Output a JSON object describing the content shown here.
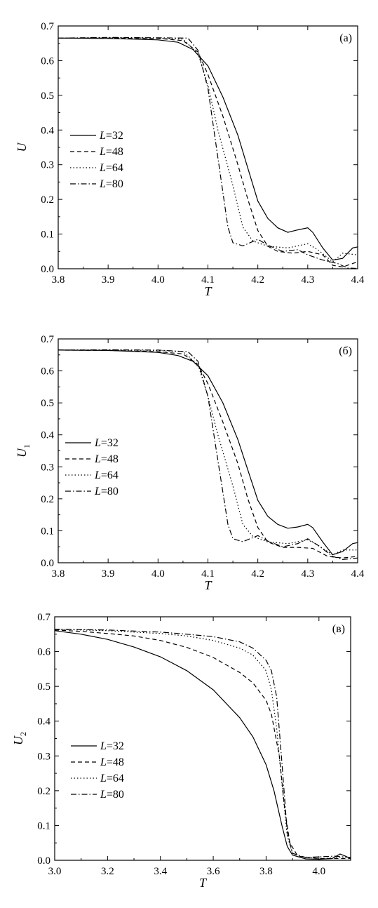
{
  "chart_data": [
    {
      "type": "line",
      "panel_label": "(а)",
      "xlabel": "T",
      "ylabel": "U",
      "ylabel_sub": "",
      "xlim": [
        3.8,
        4.4
      ],
      "ylim": [
        0.0,
        0.7
      ],
      "xticks": [
        "3.8",
        "3.9",
        "4.0",
        "4.1",
        "4.2",
        "4.3",
        "4.4"
      ],
      "yticks": [
        "0.0",
        "0.1",
        "0.2",
        "0.3",
        "0.4",
        "0.5",
        "0.6",
        "0.7"
      ],
      "legend_position": "middle-left",
      "series": [
        {
          "name": "L=32",
          "style": "solid",
          "points": [
            [
              3.8,
              0.665
            ],
            [
              3.9,
              0.664
            ],
            [
              4.0,
              0.66
            ],
            [
              4.04,
              0.653
            ],
            [
              4.07,
              0.632
            ],
            [
              4.1,
              0.585
            ],
            [
              4.13,
              0.495
            ],
            [
              4.16,
              0.385
            ],
            [
              4.18,
              0.29
            ],
            [
              4.2,
              0.195
            ],
            [
              4.22,
              0.145
            ],
            [
              4.24,
              0.118
            ],
            [
              4.26,
              0.105
            ],
            [
              4.28,
              0.112
            ],
            [
              4.3,
              0.118
            ],
            [
              4.31,
              0.105
            ],
            [
              4.33,
              0.06
            ],
            [
              4.35,
              0.025
            ],
            [
              4.37,
              0.03
            ],
            [
              4.39,
              0.06
            ],
            [
              4.4,
              0.063
            ]
          ]
        },
        {
          "name": "L=48",
          "style": "dashed",
          "points": [
            [
              3.8,
              0.665
            ],
            [
              3.9,
              0.665
            ],
            [
              4.0,
              0.664
            ],
            [
              4.05,
              0.658
            ],
            [
              4.08,
              0.625
            ],
            [
              4.1,
              0.56
            ],
            [
              4.13,
              0.44
            ],
            [
              4.16,
              0.3
            ],
            [
              4.18,
              0.2
            ],
            [
              4.2,
              0.11
            ],
            [
              4.22,
              0.065
            ],
            [
              4.24,
              0.05
            ],
            [
              4.27,
              0.045
            ],
            [
              4.3,
              0.05
            ],
            [
              4.33,
              0.04
            ],
            [
              4.35,
              0.01
            ],
            [
              4.37,
              0.005
            ],
            [
              4.4,
              0.02
            ]
          ]
        },
        {
          "name": "L=64",
          "style": "dotted",
          "points": [
            [
              3.8,
              0.665
            ],
            [
              3.9,
              0.666
            ],
            [
              4.0,
              0.665
            ],
            [
              4.05,
              0.662
            ],
            [
              4.08,
              0.62
            ],
            [
              4.1,
              0.53
            ],
            [
              4.12,
              0.4
            ],
            [
              4.15,
              0.24
            ],
            [
              4.17,
              0.12
            ],
            [
              4.19,
              0.08
            ],
            [
              4.22,
              0.065
            ],
            [
              4.26,
              0.06
            ],
            [
              4.3,
              0.072
            ],
            [
              4.32,
              0.055
            ],
            [
              4.35,
              0.02
            ],
            [
              4.37,
              0.045
            ],
            [
              4.4,
              0.04
            ]
          ]
        },
        {
          "name": "L=80",
          "style": "dashdot",
          "points": [
            [
              3.8,
              0.665
            ],
            [
              3.9,
              0.667
            ],
            [
              4.0,
              0.666
            ],
            [
              4.06,
              0.665
            ],
            [
              4.08,
              0.63
            ],
            [
              4.1,
              0.52
            ],
            [
              4.12,
              0.32
            ],
            [
              4.14,
              0.12
            ],
            [
              4.15,
              0.075
            ],
            [
              4.17,
              0.066
            ],
            [
              4.2,
              0.085
            ],
            [
              4.22,
              0.068
            ],
            [
              4.25,
              0.05
            ],
            [
              4.28,
              0.055
            ],
            [
              4.3,
              0.04
            ],
            [
              4.33,
              0.025
            ],
            [
              4.36,
              0.015
            ],
            [
              4.38,
              0.002
            ],
            [
              4.4,
              0.001
            ]
          ]
        }
      ]
    },
    {
      "type": "line",
      "panel_label": "(б)",
      "xlabel": "T",
      "ylabel": "U",
      "ylabel_sub": "1",
      "xlim": [
        3.8,
        4.4
      ],
      "ylim": [
        0.0,
        0.7
      ],
      "xticks": [
        "3.8",
        "3.9",
        "4.0",
        "4.1",
        "4.2",
        "4.3",
        "4.4"
      ],
      "yticks": [
        "0.0",
        "0.1",
        "0.2",
        "0.3",
        "0.4",
        "0.5",
        "0.6",
        "0.7"
      ],
      "legend_position": "middle-left",
      "series": [
        {
          "name": "L=32",
          "style": "solid",
          "points": [
            [
              3.8,
              0.665
            ],
            [
              3.9,
              0.664
            ],
            [
              4.0,
              0.658
            ],
            [
              4.04,
              0.648
            ],
            [
              4.07,
              0.63
            ],
            [
              4.1,
              0.585
            ],
            [
              4.13,
              0.5
            ],
            [
              4.16,
              0.385
            ],
            [
              4.18,
              0.29
            ],
            [
              4.2,
              0.195
            ],
            [
              4.22,
              0.145
            ],
            [
              4.24,
              0.12
            ],
            [
              4.26,
              0.108
            ],
            [
              4.28,
              0.112
            ],
            [
              4.3,
              0.12
            ],
            [
              4.31,
              0.11
            ],
            [
              4.33,
              0.065
            ],
            [
              4.35,
              0.025
            ],
            [
              4.37,
              0.035
            ],
            [
              4.39,
              0.06
            ],
            [
              4.4,
              0.063
            ]
          ]
        },
        {
          "name": "L=48",
          "style": "dashed",
          "points": [
            [
              3.8,
              0.665
            ],
            [
              3.9,
              0.664
            ],
            [
              4.0,
              0.66
            ],
            [
              4.05,
              0.653
            ],
            [
              4.08,
              0.62
            ],
            [
              4.1,
              0.56
            ],
            [
              4.13,
              0.44
            ],
            [
              4.16,
              0.31
            ],
            [
              4.18,
              0.2
            ],
            [
              4.2,
              0.11
            ],
            [
              4.22,
              0.065
            ],
            [
              4.25,
              0.048
            ],
            [
              4.28,
              0.048
            ],
            [
              4.31,
              0.045
            ],
            [
              4.34,
              0.02
            ],
            [
              4.37,
              0.015
            ],
            [
              4.4,
              0.02
            ]
          ]
        },
        {
          "name": "L=64",
          "style": "dotted",
          "points": [
            [
              3.8,
              0.665
            ],
            [
              3.9,
              0.665
            ],
            [
              4.0,
              0.664
            ],
            [
              4.05,
              0.66
            ],
            [
              4.08,
              0.62
            ],
            [
              4.1,
              0.52
            ],
            [
              4.12,
              0.4
            ],
            [
              4.15,
              0.24
            ],
            [
              4.17,
              0.12
            ],
            [
              4.19,
              0.082
            ],
            [
              4.22,
              0.065
            ],
            [
              4.26,
              0.06
            ],
            [
              4.3,
              0.072
            ],
            [
              4.32,
              0.055
            ],
            [
              4.35,
              0.025
            ],
            [
              4.37,
              0.04
            ],
            [
              4.4,
              0.04
            ]
          ]
        },
        {
          "name": "L=80",
          "style": "dashdot",
          "points": [
            [
              3.8,
              0.665
            ],
            [
              3.9,
              0.666
            ],
            [
              4.0,
              0.665
            ],
            [
              4.06,
              0.66
            ],
            [
              4.08,
              0.63
            ],
            [
              4.1,
              0.52
            ],
            [
              4.12,
              0.32
            ],
            [
              4.14,
              0.12
            ],
            [
              4.15,
              0.075
            ],
            [
              4.17,
              0.066
            ],
            [
              4.2,
              0.085
            ],
            [
              4.22,
              0.068
            ],
            [
              4.25,
              0.05
            ],
            [
              4.28,
              0.06
            ],
            [
              4.3,
              0.075
            ],
            [
              4.32,
              0.055
            ],
            [
              4.35,
              0.02
            ],
            [
              4.37,
              0.01
            ],
            [
              4.4,
              0.015
            ]
          ]
        }
      ]
    },
    {
      "type": "line",
      "panel_label": "(в)",
      "xlabel": "T",
      "ylabel": "U",
      "ylabel_sub": "2",
      "xlim": [
        3.0,
        4.12
      ],
      "ylim": [
        0.0,
        0.7
      ],
      "xticks": [
        "3.0",
        "3.2",
        "3.4",
        "3.6",
        "3.8",
        "4.0"
      ],
      "yticks": [
        "0.0",
        "0.1",
        "0.2",
        "0.3",
        "0.4",
        "0.5",
        "0.6",
        "0.7"
      ],
      "legend_position": "middle-left",
      "series": [
        {
          "name": "L=32",
          "style": "solid",
          "points": [
            [
              3.0,
              0.66
            ],
            [
              3.1,
              0.65
            ],
            [
              3.2,
              0.635
            ],
            [
              3.3,
              0.613
            ],
            [
              3.4,
              0.585
            ],
            [
              3.5,
              0.545
            ],
            [
              3.6,
              0.49
            ],
            [
              3.7,
              0.41
            ],
            [
              3.75,
              0.355
            ],
            [
              3.8,
              0.275
            ],
            [
              3.83,
              0.2
            ],
            [
              3.86,
              0.1
            ],
            [
              3.88,
              0.04
            ],
            [
              3.9,
              0.015
            ],
            [
              3.95,
              0.004
            ],
            [
              4.0,
              0.003
            ],
            [
              4.05,
              0.005
            ],
            [
              4.08,
              0.018
            ],
            [
              4.1,
              0.012
            ],
            [
              4.12,
              0.005
            ]
          ]
        },
        {
          "name": "L=48",
          "style": "dashed",
          "points": [
            [
              3.0,
              0.662
            ],
            [
              3.1,
              0.658
            ],
            [
              3.2,
              0.652
            ],
            [
              3.3,
              0.645
            ],
            [
              3.4,
              0.632
            ],
            [
              3.5,
              0.612
            ],
            [
              3.6,
              0.583
            ],
            [
              3.7,
              0.54
            ],
            [
              3.75,
              0.51
            ],
            [
              3.8,
              0.46
            ],
            [
              3.82,
              0.42
            ],
            [
              3.85,
              0.3
            ],
            [
              3.87,
              0.15
            ],
            [
              3.89,
              0.05
            ],
            [
              3.92,
              0.012
            ],
            [
              4.0,
              0.005
            ],
            [
              4.12,
              0.005
            ]
          ]
        },
        {
          "name": "L=64",
          "style": "dotted",
          "points": [
            [
              3.0,
              0.664
            ],
            [
              3.2,
              0.66
            ],
            [
              3.4,
              0.652
            ],
            [
              3.5,
              0.645
            ],
            [
              3.6,
              0.632
            ],
            [
              3.7,
              0.61
            ],
            [
              3.75,
              0.59
            ],
            [
              3.8,
              0.545
            ],
            [
              3.82,
              0.49
            ],
            [
              3.84,
              0.38
            ],
            [
              3.86,
              0.22
            ],
            [
              3.88,
              0.07
            ],
            [
              3.9,
              0.02
            ],
            [
              3.95,
              0.008
            ],
            [
              4.02,
              0.005
            ],
            [
              4.1,
              0.01
            ],
            [
              4.12,
              0.005
            ]
          ]
        },
        {
          "name": "L=80",
          "style": "dashdot",
          "points": [
            [
              3.0,
              0.664
            ],
            [
              3.2,
              0.662
            ],
            [
              3.4,
              0.656
            ],
            [
              3.5,
              0.65
            ],
            [
              3.6,
              0.643
            ],
            [
              3.7,
              0.628
            ],
            [
              3.75,
              0.61
            ],
            [
              3.8,
              0.575
            ],
            [
              3.82,
              0.545
            ],
            [
              3.84,
              0.47
            ],
            [
              3.86,
              0.28
            ],
            [
              3.88,
              0.08
            ],
            [
              3.9,
              0.02
            ],
            [
              3.95,
              0.008
            ],
            [
              4.0,
              0.01
            ],
            [
              4.06,
              0.012
            ],
            [
              4.12,
              0.008
            ]
          ]
        }
      ]
    }
  ]
}
